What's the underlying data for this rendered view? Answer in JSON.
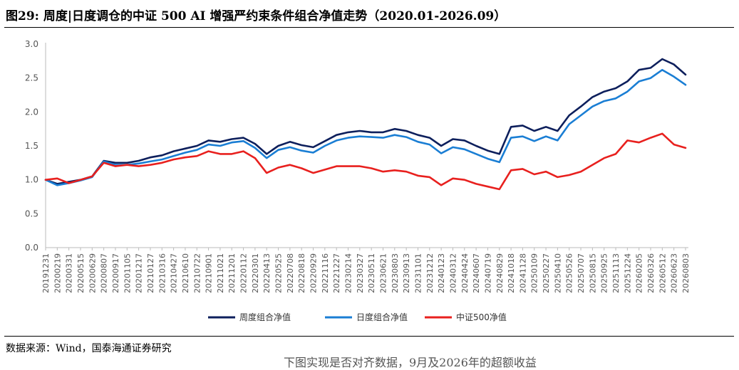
{
  "header": {
    "title": "图29:  周度|日度调仓的中证 500 AI 增强严约束条件组合净值走势（2020.01-2026.09）"
  },
  "footer": {
    "source": "数据来源：Wind，国泰海通证券研究",
    "cutoff_text": "下图实现是否对齐数据，9月及2026年的超额收益"
  },
  "chart_data": {
    "type": "line",
    "title": "",
    "xlabel": "",
    "ylabel": "",
    "ylim": [
      0.0,
      3.0
    ],
    "yticks": [
      "0.0",
      "0.5",
      "1.0",
      "1.5",
      "2.0",
      "2.5",
      "3.0"
    ],
    "grid": false,
    "legend_position": "bottom",
    "x_ticks": [
      "20191231",
      "20200219",
      "20200331",
      "20200515",
      "20200629",
      "20200807",
      "20200917",
      "20201105",
      "20201217",
      "20210127",
      "20210316",
      "20210427",
      "20210610",
      "20210722",
      "20210901",
      "20211021",
      "20211201",
      "20220112",
      "20220301",
      "20220413",
      "20220525",
      "20220708",
      "20220818",
      "20220929",
      "20221116",
      "20221227",
      "20230214",
      "20230327",
      "20230511",
      "20230621",
      "20230803",
      "20230913",
      "20231101",
      "20231212",
      "20240123",
      "20240312",
      "20240424",
      "20240607",
      "20240719",
      "20240829",
      "20241018",
      "20241128",
      "20250109",
      "20250227",
      "20250410",
      "20250526",
      "20250707",
      "20250815",
      "20250925",
      "20251113",
      "20251224",
      "20260205",
      "20260326",
      "20260512",
      "20260623",
      "20260803"
    ],
    "series": [
      {
        "name": "周度组合净值",
        "color": "#0d1f5c",
        "values": [
          1.0,
          0.94,
          0.97,
          1.0,
          1.05,
          1.28,
          1.25,
          1.25,
          1.28,
          1.33,
          1.36,
          1.42,
          1.46,
          1.5,
          1.58,
          1.56,
          1.6,
          1.62,
          1.53,
          1.38,
          1.5,
          1.56,
          1.51,
          1.48,
          1.57,
          1.66,
          1.7,
          1.72,
          1.7,
          1.7,
          1.75,
          1.72,
          1.66,
          1.62,
          1.5,
          1.6,
          1.58,
          1.5,
          1.43,
          1.38,
          1.78,
          1.8,
          1.72,
          1.78,
          1.72,
          1.95,
          2.08,
          2.22,
          2.3,
          2.35,
          2.45,
          2.62,
          2.65,
          2.78,
          2.7,
          2.55
        ]
      },
      {
        "name": "日度组合净值",
        "color": "#1a7ed4",
        "values": [
          1.0,
          0.92,
          0.95,
          0.99,
          1.04,
          1.27,
          1.22,
          1.22,
          1.24,
          1.27,
          1.3,
          1.35,
          1.4,
          1.44,
          1.52,
          1.5,
          1.55,
          1.57,
          1.47,
          1.32,
          1.44,
          1.48,
          1.43,
          1.4,
          1.5,
          1.58,
          1.62,
          1.64,
          1.63,
          1.62,
          1.66,
          1.63,
          1.56,
          1.52,
          1.39,
          1.48,
          1.45,
          1.38,
          1.31,
          1.26,
          1.62,
          1.64,
          1.57,
          1.64,
          1.58,
          1.82,
          1.95,
          2.08,
          2.16,
          2.2,
          2.3,
          2.45,
          2.5,
          2.62,
          2.52,
          2.4
        ]
      },
      {
        "name": "中证500净值",
        "color": "#e8201e",
        "values": [
          1.0,
          1.02,
          0.95,
          1.0,
          1.05,
          1.25,
          1.2,
          1.22,
          1.2,
          1.22,
          1.25,
          1.3,
          1.33,
          1.35,
          1.42,
          1.38,
          1.38,
          1.42,
          1.32,
          1.1,
          1.18,
          1.22,
          1.17,
          1.1,
          1.15,
          1.2,
          1.2,
          1.2,
          1.17,
          1.12,
          1.14,
          1.12,
          1.06,
          1.04,
          0.92,
          1.02,
          1.0,
          0.94,
          0.9,
          0.86,
          1.14,
          1.16,
          1.08,
          1.12,
          1.04,
          1.07,
          1.12,
          1.22,
          1.32,
          1.38,
          1.58,
          1.55,
          1.62,
          1.68,
          1.52,
          1.47
        ]
      }
    ]
  }
}
